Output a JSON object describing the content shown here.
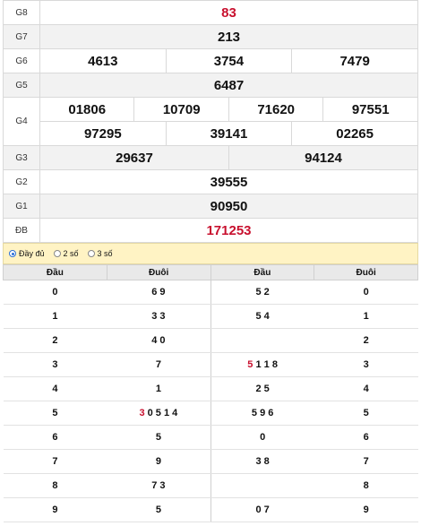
{
  "prizes": [
    {
      "label": "G8",
      "numbers": [
        "83"
      ]
    },
    {
      "label": "G7",
      "numbers": [
        "213"
      ]
    },
    {
      "label": "G6",
      "numbers": [
        "4613",
        "3754",
        "7479"
      ]
    },
    {
      "label": "G5",
      "numbers": [
        "6487"
      ]
    },
    {
      "label": "G4",
      "numbers": [
        "01806",
        "10709",
        "71620",
        "97551",
        "97295",
        "39141",
        "02265"
      ]
    },
    {
      "label": "G3",
      "numbers": [
        "29637",
        "94124"
      ]
    },
    {
      "label": "G2",
      "numbers": [
        "39555"
      ]
    },
    {
      "label": "G1",
      "numbers": [
        "90950"
      ]
    },
    {
      "label": "ĐB",
      "numbers": [
        "171253"
      ]
    }
  ],
  "options": {
    "full": "Đầy đủ",
    "two": "2 số",
    "three": "3 số",
    "selected": "full"
  },
  "loto": {
    "headers": {
      "dau": "Đầu",
      "duoi": "Đuôi"
    },
    "rows": [
      {
        "d": "0",
        "tail": "6 9",
        "head_list": "5 2"
      },
      {
        "d": "1",
        "tail": "3 3",
        "head_list": "5 4"
      },
      {
        "d": "2",
        "tail": "4 0",
        "head_list": ""
      },
      {
        "d": "3",
        "tail": "7",
        "head_list_hl": "5",
        "head_list": " 1 1 8"
      },
      {
        "d": "4",
        "tail": "1",
        "head_list": "2 5"
      },
      {
        "d": "5",
        "tail_hl": "3",
        "tail": " 0 5 1 4",
        "head_list": "5 9 6"
      },
      {
        "d": "6",
        "tail": "5",
        "head_list": "0"
      },
      {
        "d": "7",
        "tail": "9",
        "head_list": "3 8"
      },
      {
        "d": "8",
        "tail": "7 3",
        "head_list": ""
      },
      {
        "d": "9",
        "tail": "5",
        "head_list": "0 7"
      }
    ]
  },
  "colors": {
    "accent": "#c8102e",
    "option_bar": "#fff3c4"
  }
}
